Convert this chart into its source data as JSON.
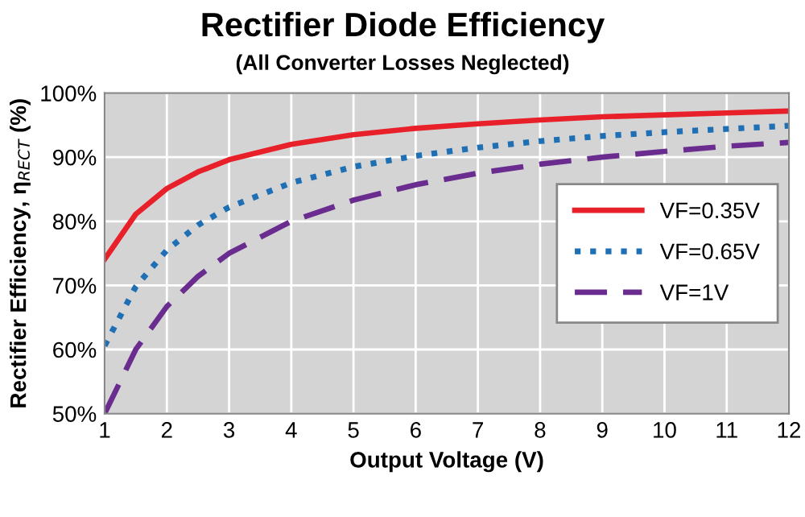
{
  "chart_data": {
    "type": "line",
    "title": "Rectifier Diode Efficiency",
    "subtitle": "(All Converter Losses Neglected)",
    "xlabel": "Output Voltage (V)",
    "ylabel": "Rectifier Efficiency, η$_{RECT}$ (%)",
    "x": [
      1,
      1.5,
      2,
      2.5,
      3,
      4,
      5,
      6,
      7,
      8,
      9,
      10,
      11,
      12
    ],
    "series": [
      {
        "name": "VF=0.35V",
        "color": "#e8202a",
        "line_style": "solid",
        "values": [
          74.1,
          81.1,
          85.1,
          87.7,
          89.6,
          92.0,
          93.5,
          94.5,
          95.2,
          95.8,
          96.3,
          96.6,
          96.9,
          97.2
        ]
      },
      {
        "name": "VF=0.65V",
        "color": "#1f6fb5",
        "line_style": "dotted",
        "values": [
          60.6,
          69.8,
          75.5,
          79.4,
          82.2,
          86.0,
          88.5,
          90.2,
          91.5,
          92.5,
          93.3,
          93.9,
          94.4,
          94.9
        ]
      },
      {
        "name": "VF=1V",
        "color": "#6a2c8f",
        "line_style": "dashed",
        "values": [
          50.0,
          60.0,
          66.7,
          71.4,
          75.0,
          80.0,
          83.3,
          85.7,
          87.5,
          88.9,
          90.0,
          90.9,
          91.7,
          92.3
        ]
      }
    ],
    "xlim": [
      1,
      12
    ],
    "xticks": [
      1,
      2,
      3,
      4,
      5,
      6,
      7,
      8,
      9,
      10,
      11,
      12
    ],
    "ylim": [
      50,
      100
    ],
    "yticks": [
      {
        "value": 50,
        "label": "50%"
      },
      {
        "value": 60,
        "label": "60%"
      },
      {
        "value": 70,
        "label": "70%"
      },
      {
        "value": 80,
        "label": "80%"
      },
      {
        "value": 90,
        "label": "90%"
      },
      {
        "value": 100,
        "label": "100%"
      }
    ],
    "grid": true,
    "legend": "center right",
    "marker": "none"
  }
}
